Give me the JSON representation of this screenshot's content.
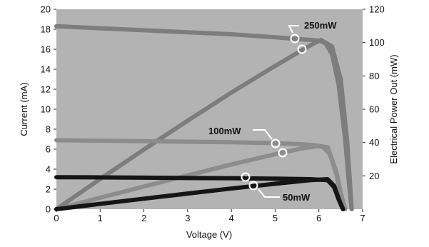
{
  "chart_data": {
    "type": "line",
    "title": "",
    "xlabel": "Voltage (V)",
    "ylabel": "Current (mA)",
    "y2label": "Electrical Power Out (mW)",
    "xlim": [
      0,
      7
    ],
    "ylim": [
      0,
      20
    ],
    "y2lim": [
      0,
      120
    ],
    "x_ticks": [
      "0",
      "1",
      "2",
      "3",
      "4",
      "5",
      "6",
      "7"
    ],
    "y_ticks": [
      "0",
      "2",
      "4",
      "6",
      "8",
      "10",
      "12",
      "14",
      "16",
      "18",
      "20"
    ],
    "y2_ticks": [
      "20",
      "40",
      "60",
      "80",
      "100",
      "120"
    ],
    "grid": false,
    "plot_background": "#b3b3b3",
    "series": [
      {
        "name": "250mW",
        "color": "#7d7d7d",
        "current": {
          "x": [
            0,
            1,
            2,
            3,
            4,
            5,
            5.6,
            5.9,
            6.05,
            6.15,
            6.3,
            6.45,
            6.6,
            6.7,
            6.75
          ],
          "y": [
            18.3,
            18.1,
            17.9,
            17.7,
            17.5,
            17.2,
            17.0,
            16.9,
            16.8,
            16.6,
            15.5,
            12.5,
            7.0,
            2.0,
            0
          ]
        },
        "power": {
          "x": [
            0,
            1,
            2,
            3,
            4,
            5,
            5.6,
            5.9,
            6.05,
            6.3,
            6.5,
            6.65,
            6.75
          ],
          "y": [
            0,
            18.1,
            35.8,
            53.1,
            70.0,
            86.0,
            95.2,
            99.7,
            101.6,
            97.7,
            78.0,
            40.0,
            0
          ]
        }
      },
      {
        "name": "100mW",
        "color": "#8c8c8c",
        "current": {
          "x": [
            0,
            1,
            2,
            3,
            4,
            5,
            5.6,
            5.9,
            6.1,
            6.25,
            6.4,
            6.5,
            6.55,
            6.6
          ],
          "y": [
            6.9,
            6.85,
            6.8,
            6.75,
            6.7,
            6.6,
            6.5,
            6.4,
            6.2,
            5.5,
            3.5,
            1.5,
            0.5,
            0
          ]
        },
        "power": {
          "x": [
            0,
            1,
            2,
            3,
            4,
            5,
            5.6,
            6.0,
            6.2,
            6.4,
            6.5,
            6.6
          ],
          "y": [
            0,
            6.85,
            13.6,
            20.25,
            26.8,
            33.0,
            36.4,
            38.0,
            37.2,
            22.4,
            9.75,
            0
          ]
        }
      },
      {
        "name": "50mW",
        "color": "#151515",
        "current": {
          "x": [
            0,
            1,
            2,
            3,
            4,
            5,
            5.8,
            6.2,
            6.35,
            6.45,
            6.52,
            6.55
          ],
          "y": [
            3.2,
            3.18,
            3.15,
            3.12,
            3.1,
            3.05,
            3.0,
            2.9,
            2.2,
            1.0,
            0.3,
            0
          ]
        },
        "power": {
          "x": [
            0,
            1,
            2,
            3,
            4,
            5,
            5.8,
            6.2,
            6.35,
            6.45,
            6.55
          ],
          "y": [
            0,
            3.18,
            6.3,
            9.36,
            12.4,
            15.25,
            17.4,
            17.98,
            13.97,
            6.45,
            0
          ]
        }
      }
    ]
  }
}
